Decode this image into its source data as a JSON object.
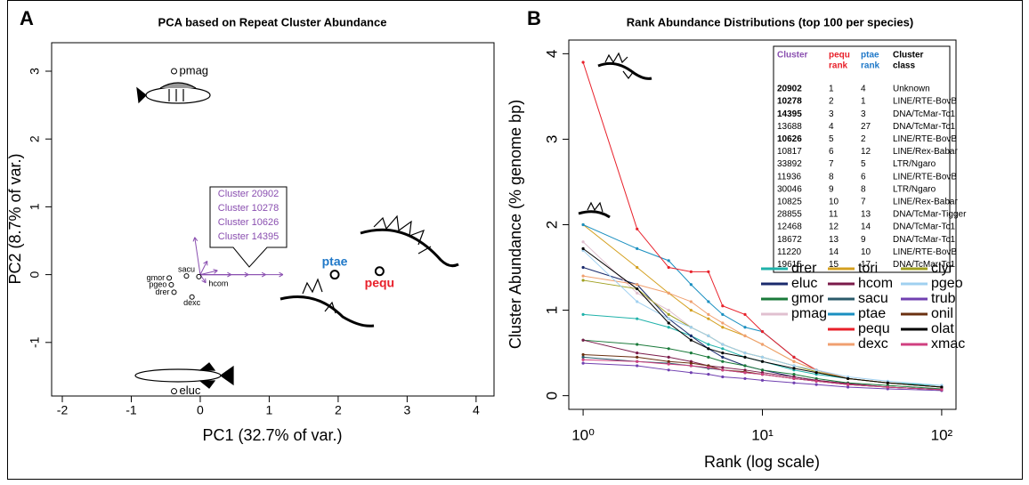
{
  "chart_data": [
    {
      "type": "scatter",
      "panel": "A",
      "title": "PCA based on Repeat Cluster Abundance",
      "xlabel": "PC1 (32.7% of var.)",
      "ylabel": "PC2 (8.7% of var.)",
      "xlim": [
        -2.155,
        4.26
      ],
      "ylim": [
        -1.79,
        3.42
      ],
      "xticks": [
        -2,
        -1,
        0,
        1,
        2,
        3,
        4
      ],
      "yticks": [
        -1,
        0,
        1,
        2,
        3
      ],
      "points": [
        {
          "label": "pmag",
          "x": -0.38,
          "y": 3.0,
          "color": "#000000",
          "side": "right"
        },
        {
          "label": "ptae",
          "x": 1.95,
          "y": 0.0,
          "color": "#1f78c8",
          "side": "above",
          "bold": true
        },
        {
          "label": "pequ",
          "x": 2.6,
          "y": 0.05,
          "color": "#e8202a",
          "side": "below",
          "bold": true
        },
        {
          "label": "eluc",
          "x": -0.38,
          "y": -1.72,
          "color": "#000000",
          "side": "right"
        },
        {
          "label": "sacu",
          "x": -0.2,
          "y": -0.02,
          "color": "#000000",
          "side": "above",
          "small": true
        },
        {
          "label": "hcom",
          "x": -0.02,
          "y": -0.03,
          "color": "#000000",
          "side": "below-right",
          "small": true
        },
        {
          "label": "gmor",
          "x": -0.45,
          "y": -0.05,
          "color": "#000000",
          "side": "left",
          "small": true
        },
        {
          "label": "pgeo",
          "x": -0.42,
          "y": -0.15,
          "color": "#000000",
          "side": "left",
          "small": true
        },
        {
          "label": "drer",
          "x": -0.38,
          "y": -0.26,
          "color": "#000000",
          "side": "left",
          "small": true
        },
        {
          "label": "dexc",
          "x": -0.12,
          "y": -0.33,
          "color": "#000000",
          "side": "below",
          "small": true
        }
      ],
      "loading_color": "#8a4fb0",
      "loadings": [
        {
          "x": 1.2,
          "y": 0.0
        },
        {
          "x": 0.95,
          "y": 0.0
        },
        {
          "x": 0.7,
          "y": 0.0
        },
        {
          "x": 0.45,
          "y": 0.0
        },
        {
          "x": 0.25,
          "y": 0.06
        },
        {
          "x": -0.08,
          "y": 0.55
        },
        {
          "x": 0.1,
          "y": 0.2
        },
        {
          "x": 0.08,
          "y": -0.12
        }
      ],
      "callout": [
        "Cluster 20902",
        "Cluster 10278",
        "Cluster 10626",
        "Cluster 14395"
      ]
    },
    {
      "type": "line",
      "panel": "B",
      "title": "Rank Abundance Distributions (top 100 per species)",
      "xlabel": "Rank (log scale)",
      "ylabel": "Cluster Abundance (% genome bp)",
      "xscale": "log",
      "xlim": [
        0.832,
        120.2
      ],
      "ylim": [
        -0.16,
        4.16
      ],
      "xticks": [
        {
          "value": 1,
          "label": "10⁰"
        },
        {
          "value": 10,
          "label": "10¹"
        },
        {
          "value": 100,
          "label": "10²"
        }
      ],
      "yticks": [
        0,
        1,
        2,
        3,
        4
      ],
      "x": [
        1,
        2,
        3,
        4,
        5,
        6,
        8,
        10,
        15,
        20,
        30,
        50,
        100
      ],
      "series": [
        {
          "name": "drer",
          "color": "#20b2aa",
          "values": [
            0.95,
            0.9,
            0.8,
            0.7,
            0.6,
            0.55,
            0.45,
            0.4,
            0.3,
            0.25,
            0.2,
            0.15,
            0.12
          ]
        },
        {
          "name": "eluc",
          "color": "#1a2a6c",
          "values": [
            1.5,
            1.3,
            0.9,
            0.7,
            0.55,
            0.45,
            0.35,
            0.3,
            0.22,
            0.18,
            0.14,
            0.1,
            0.07
          ]
        },
        {
          "name": "gmor",
          "color": "#1a7a3a",
          "values": [
            0.65,
            0.6,
            0.55,
            0.5,
            0.45,
            0.4,
            0.35,
            0.3,
            0.25,
            0.2,
            0.15,
            0.12,
            0.08
          ]
        },
        {
          "name": "pmag",
          "color": "#e0c0d0",
          "values": [
            1.8,
            1.2,
            1.0,
            0.8,
            0.7,
            0.6,
            0.5,
            0.45,
            0.35,
            0.28,
            0.2,
            0.15,
            0.1
          ]
        },
        {
          "name": "tori",
          "color": "#d4a020",
          "values": [
            2.0,
            1.5,
            1.2,
            1.0,
            0.9,
            0.8,
            0.7,
            0.6,
            0.4,
            0.3,
            0.2,
            0.15,
            0.1
          ]
        },
        {
          "name": "hcom",
          "color": "#7a1a4a",
          "values": [
            0.65,
            0.5,
            0.45,
            0.4,
            0.35,
            0.33,
            0.3,
            0.27,
            0.22,
            0.18,
            0.14,
            0.1,
            0.07
          ]
        },
        {
          "name": "sacu",
          "color": "#2a5a6a",
          "values": [
            0.45,
            0.4,
            0.38,
            0.35,
            0.32,
            0.3,
            0.27,
            0.25,
            0.2,
            0.17,
            0.13,
            0.1,
            0.07
          ]
        },
        {
          "name": "ptae",
          "color": "#1a8fc0",
          "values": [
            2.0,
            1.72,
            1.58,
            1.3,
            1.1,
            0.95,
            0.8,
            0.75,
            0.45,
            0.3,
            0.2,
            0.15,
            0.1
          ]
        },
        {
          "name": "pequ",
          "color": "#e8202a",
          "values": [
            3.9,
            1.95,
            1.5,
            1.45,
            1.45,
            1.05,
            0.95,
            0.75,
            0.45,
            0.3,
            0.2,
            0.15,
            0.1
          ]
        },
        {
          "name": "dexc",
          "color": "#f0a070",
          "values": [
            1.4,
            1.3,
            1.2,
            1.1,
            0.95,
            0.85,
            0.7,
            0.6,
            0.4,
            0.3,
            0.2,
            0.15,
            0.1
          ]
        },
        {
          "name": "clyr",
          "color": "#a0a020",
          "values": [
            1.35,
            1.25,
            0.95,
            0.8,
            0.7,
            0.6,
            0.5,
            0.45,
            0.35,
            0.28,
            0.2,
            0.15,
            0.1
          ]
        },
        {
          "name": "pgeo",
          "color": "#a0d0f0",
          "values": [
            1.7,
            1.1,
            0.9,
            0.8,
            0.7,
            0.6,
            0.5,
            0.45,
            0.35,
            0.3,
            0.22,
            0.17,
            0.12
          ]
        },
        {
          "name": "trub",
          "color": "#7040b0",
          "values": [
            0.38,
            0.35,
            0.3,
            0.27,
            0.25,
            0.22,
            0.2,
            0.18,
            0.15,
            0.13,
            0.1,
            0.08,
            0.06
          ]
        },
        {
          "name": "onil",
          "color": "#6a3010",
          "values": [
            0.48,
            0.45,
            0.4,
            0.38,
            0.35,
            0.3,
            0.28,
            0.25,
            0.2,
            0.17,
            0.13,
            0.1,
            0.07
          ]
        },
        {
          "name": "olat",
          "color": "#000000",
          "values": [
            1.72,
            1.25,
            0.85,
            0.65,
            0.55,
            0.5,
            0.45,
            0.4,
            0.32,
            0.27,
            0.2,
            0.15,
            0.1
          ]
        },
        {
          "name": "xmac",
          "color": "#d04080",
          "values": [
            0.42,
            0.4,
            0.37,
            0.35,
            0.33,
            0.3,
            0.27,
            0.25,
            0.2,
            0.17,
            0.13,
            0.1,
            0.07
          ]
        }
      ],
      "table": {
        "columns": [
          [
            "Cluster"
          ],
          [
            "pequ",
            "rank"
          ],
          [
            "ptae",
            "rank"
          ],
          [
            "Cluster",
            "class"
          ]
        ],
        "column_colors": [
          "#8a4fb0",
          "#e8202a",
          "#1f78c8",
          "#000000"
        ],
        "rows": [
          {
            "cluster": "20902",
            "pequ": 1,
            "ptae": 4,
            "class": "Unknown",
            "bold": true
          },
          {
            "cluster": "10278",
            "pequ": 2,
            "ptae": 1,
            "class": "LINE/RTE-BovB",
            "bold": true
          },
          {
            "cluster": "14395",
            "pequ": 3,
            "ptae": 3,
            "class": "DNA/TcMar-Tc1",
            "bold": true
          },
          {
            "cluster": "13688",
            "pequ": 4,
            "ptae": 27,
            "class": "DNA/TcMar-Tc1"
          },
          {
            "cluster": "10626",
            "pequ": 5,
            "ptae": 2,
            "class": "LINE/RTE-BovB",
            "bold": true
          },
          {
            "cluster": "10817",
            "pequ": 6,
            "ptae": 12,
            "class": "LINE/Rex-Babar"
          },
          {
            "cluster": "33892",
            "pequ": 7,
            "ptae": 5,
            "class": "LTR/Ngaro"
          },
          {
            "cluster": "11936",
            "pequ": 8,
            "ptae": 6,
            "class": "LINE/RTE-BovB"
          },
          {
            "cluster": "30046",
            "pequ": 9,
            "ptae": 8,
            "class": "LTR/Ngaro"
          },
          {
            "cluster": "10825",
            "pequ": 10,
            "ptae": 7,
            "class": "LINE/Rex-Babar"
          },
          {
            "cluster": "28855",
            "pequ": 11,
            "ptae": 13,
            "class": "DNA/TcMar-Tigger"
          },
          {
            "cluster": "12468",
            "pequ": 12,
            "ptae": 14,
            "class": "DNA/TcMar-Tc1"
          },
          {
            "cluster": "18672",
            "pequ": 13,
            "ptae": 9,
            "class": "DNA/TcMar-Tc1"
          },
          {
            "cluster": "11220",
            "pequ": 14,
            "ptae": 10,
            "class": "LINE/RTE-BovB"
          },
          {
            "cluster": "19615",
            "pequ": 15,
            "ptae": 17,
            "class": "DNA/TcMar-Tc1"
          }
        ]
      }
    }
  ]
}
